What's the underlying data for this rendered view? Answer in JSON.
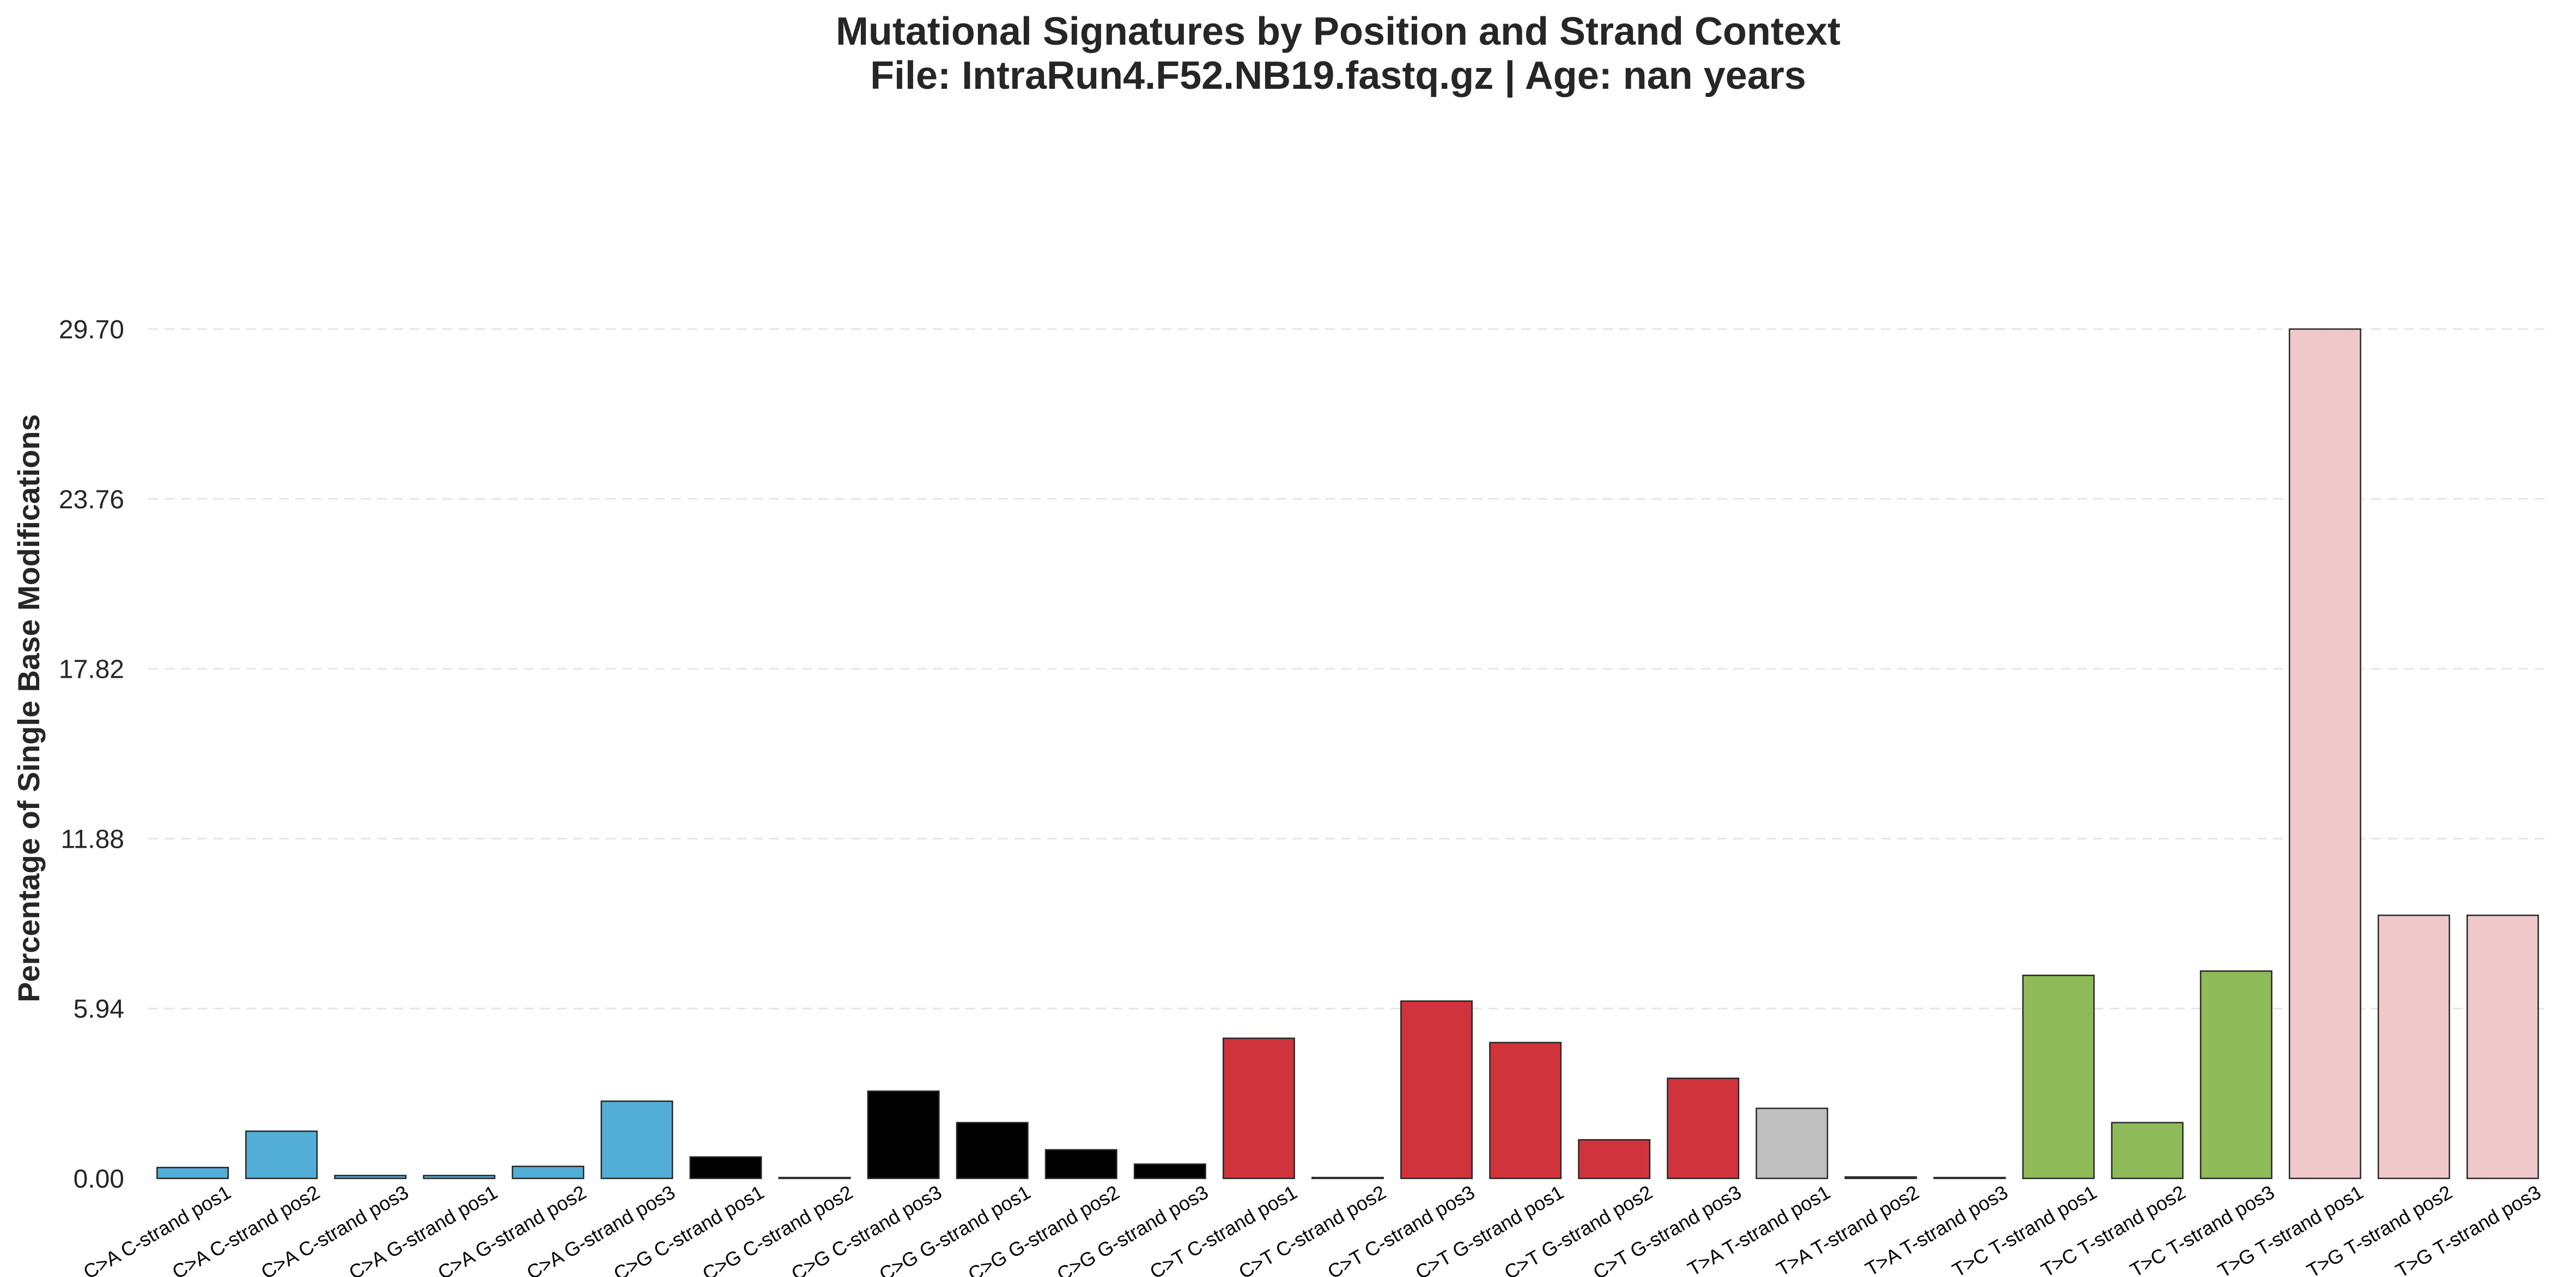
{
  "chart_data": {
    "type": "bar",
    "title": "Mutational Signatures by Position and Strand Context",
    "subtitle": "File: IntraRun4.F52.NB19.fastq.gz | Age: nan years",
    "xlabel": "",
    "ylabel": "Percentage of Single Base Modifications",
    "ylim": [
      0,
      29.7
    ],
    "yticks": [
      "0.00",
      "5.94",
      "11.88",
      "17.82",
      "23.76",
      "29.70"
    ],
    "grid": "horizontal dashed",
    "categories": [
      "C>A C-strand pos1",
      "C>A C-strand pos2",
      "C>A C-strand pos3",
      "C>A G-strand pos1",
      "C>A G-strand pos2",
      "C>A G-strand pos3",
      "C>G C-strand pos1",
      "C>G C-strand pos2",
      "C>G C-strand pos3",
      "C>G G-strand pos1",
      "C>G G-strand pos2",
      "C>G G-strand pos3",
      "C>T C-strand pos1",
      "C>T C-strand pos2",
      "C>T C-strand pos3",
      "C>T G-strand pos1",
      "C>T G-strand pos2",
      "C>T G-strand pos3",
      "T>A T-strand pos1",
      "T>A T-strand pos2",
      "T>A T-strand pos3",
      "T>C T-strand pos1",
      "T>C T-strand pos2",
      "T>C T-strand pos3",
      "T>G T-strand pos1",
      "T>G T-strand pos2",
      "T>G T-strand pos3"
    ],
    "values": [
      0.38,
      1.65,
      0.1,
      0.1,
      0.42,
      2.7,
      0.75,
      0.03,
      3.05,
      1.95,
      1.0,
      0.5,
      4.9,
      0.03,
      6.2,
      4.75,
      1.35,
      3.5,
      2.45,
      0.05,
      0.03,
      7.1,
      1.95,
      7.25,
      29.7,
      9.2,
      9.2
    ],
    "colors": [
      "#52aed6",
      "#52aed6",
      "#52aed6",
      "#52aed6",
      "#52aed6",
      "#52aed6",
      "#000000",
      "#000000",
      "#000000",
      "#000000",
      "#000000",
      "#000000",
      "#d1333c",
      "#d1333c",
      "#d1333c",
      "#d1333c",
      "#d1333c",
      "#d1333c",
      "#bfbfbf",
      "#bfbfbf",
      "#bfbfbf",
      "#8fba58",
      "#8fba58",
      "#8fba58",
      "#f0c8c9",
      "#f0c8c9",
      "#f0c8c9"
    ]
  }
}
